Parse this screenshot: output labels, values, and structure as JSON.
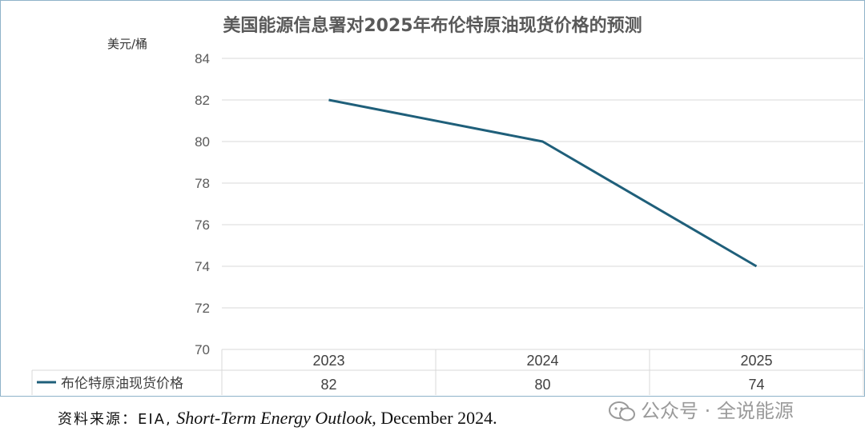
{
  "chart_data": {
    "type": "line",
    "title": "美国能源信息署对2025年布伦特原油现货价格的预测",
    "ylabel": "美元/桶",
    "categories": [
      "2023",
      "2024",
      "2025"
    ],
    "series": [
      {
        "name": "布伦特原油现货价格",
        "values": [
          82,
          80,
          74
        ],
        "color": "#1f5f7a"
      }
    ],
    "ylim": [
      70,
      84
    ],
    "yticks": [
      70,
      72,
      74,
      76,
      78,
      80,
      82,
      84
    ],
    "grid": true,
    "data_table": true
  },
  "source": {
    "prefix": "资料来源：EIA,",
    "italic": "Short-Term Energy Outlook,",
    "suffix": "December 2024."
  },
  "watermark": {
    "icon": "wechat-icon",
    "text": "公众号 · 全说能源"
  }
}
